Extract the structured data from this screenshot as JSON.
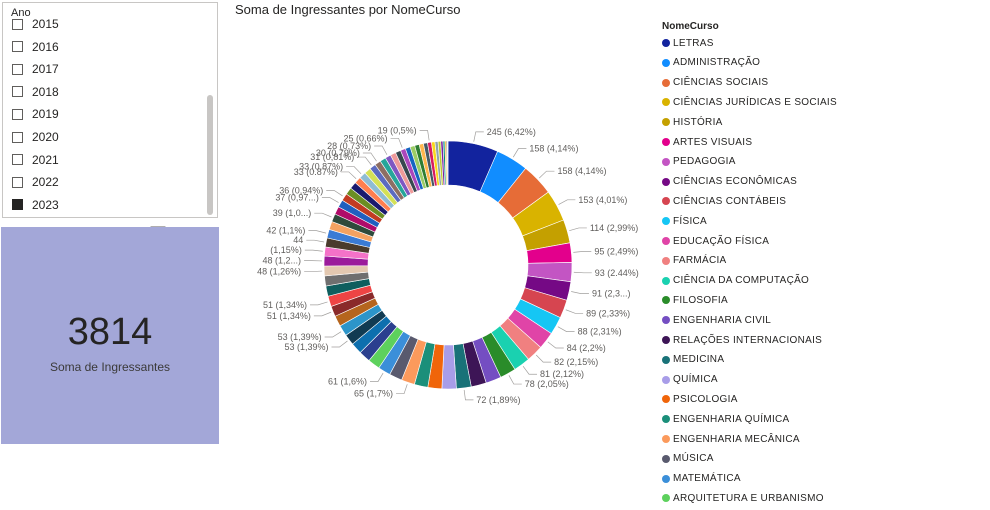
{
  "slicer": {
    "title": "Ano",
    "items": [
      {
        "label": "2015",
        "checked": false
      },
      {
        "label": "2016",
        "checked": false
      },
      {
        "label": "2017",
        "checked": false
      },
      {
        "label": "2018",
        "checked": false
      },
      {
        "label": "2019",
        "checked": false
      },
      {
        "label": "2020",
        "checked": false
      },
      {
        "label": "2021",
        "checked": false
      },
      {
        "label": "2022",
        "checked": false
      },
      {
        "label": "2023",
        "checked": true
      }
    ]
  },
  "card": {
    "value": "3814",
    "label": "Soma de Ingressantes",
    "tools": [
      "filter-icon",
      "focus-mode-icon",
      "more-options-icon"
    ],
    "background": "#a3a7d8"
  },
  "chart_data": {
    "type": "pie",
    "donut": true,
    "title": "Soma de Ingressantes por NomeCurso",
    "legend_title": "NomeCurso",
    "legend_position": "right",
    "total": 3814,
    "slices": [
      {
        "name": "LETRAS",
        "value": 245,
        "label": "245 (6,42%)",
        "color": "#12239e"
      },
      {
        "name": "ADMINISTRAÇÃO",
        "value": 158,
        "label": "158 (4,14%)",
        "color": "#118dff"
      },
      {
        "name": "CIÊNCIAS SOCIAIS",
        "value": 158,
        "label": "158 (4,14%)",
        "color": "#e66c37"
      },
      {
        "name": "CIÊNCIAS JURÍDICAS E SOCIAIS",
        "value": 153,
        "label": "153 (4,01%)",
        "color": "#d9b300"
      },
      {
        "name": "HISTÓRIA",
        "value": 114,
        "label": "114 (2,99%)",
        "color": "#c4a000"
      },
      {
        "name": "ARTES VISUAIS",
        "value": 95,
        "label": "95 (2,49%)",
        "color": "#e3008c"
      },
      {
        "name": "PEDAGOGIA",
        "value": 93,
        "label": "93 (2.44%)",
        "color": "#c355c3"
      },
      {
        "name": "CIÊNCIAS ECONÔMICAS",
        "value": 91,
        "label": "91 (2,3...)",
        "color": "#750985"
      },
      {
        "name": "CIÊNCIAS CONTÁBEIS",
        "value": 89,
        "label": "89 (2,33%)",
        "color": "#d64550"
      },
      {
        "name": "FÍSICA",
        "value": 88,
        "label": "88 (2,31%)",
        "color": "#15c6f4"
      },
      {
        "name": "EDUCAÇÃO FÍSICA",
        "value": 84,
        "label": "84 (2,2%)",
        "color": "#e044a7"
      },
      {
        "name": "FARMÁCIA",
        "value": 82,
        "label": "82 (2,15%)",
        "color": "#f08080"
      },
      {
        "name": "CIÊNCIA DA COMPUTAÇÃO",
        "value": 81,
        "label": "81 (2,12%)",
        "color": "#1ad1b0"
      },
      {
        "name": "FILOSOFIA",
        "value": 78,
        "label": "78 (2,05%)",
        "color": "#2a8c2a"
      },
      {
        "name": "ENGENHARIA CIVIL",
        "value": 75,
        "label": "",
        "color": "#744ec2"
      },
      {
        "name": "RELAÇÕES INTERNACIONAIS",
        "value": 74,
        "label": "",
        "color": "#3d1556"
      },
      {
        "name": "MEDICINA",
        "value": 72,
        "label": "72 (1,89%)",
        "color": "#197278"
      },
      {
        "name": "QUÍMICA",
        "value": 70,
        "label": "",
        "color": "#a89de8"
      },
      {
        "name": "PSICOLOGIA",
        "value": 68,
        "label": "",
        "color": "#f0650a"
      },
      {
        "name": "ENGENHARIA QUÍMICA",
        "value": 66,
        "label": "",
        "color": "#1b8f7a"
      },
      {
        "name": "ENGENHARIA MECÂNICA",
        "value": 65,
        "label": "65 (1,7%)",
        "color": "#fb9a5c"
      },
      {
        "name": "MÚSICA",
        "value": 63,
        "label": "",
        "color": "#595a6e"
      },
      {
        "name": "MATEMÁTICA",
        "value": 61,
        "label": "61 (1,6%)",
        "color": "#3b8fd9"
      },
      {
        "name": "ARQUITETURA E URBANISMO",
        "value": 59,
        "label": "",
        "color": "#5dd15d"
      },
      {
        "name": "",
        "value": 57,
        "label": "",
        "color": "#2b3f8f"
      },
      {
        "name": "",
        "value": 55,
        "label": "",
        "color": "#0d6fae"
      },
      {
        "name": "",
        "value": 53,
        "label": "53 (1,39%)",
        "color": "#113b52"
      },
      {
        "name": "",
        "value": 53,
        "label": "53 (1,39%)",
        "color": "#2c95c9"
      },
      {
        "name": "",
        "value": 52,
        "label": "",
        "color": "#b5651d"
      },
      {
        "name": "",
        "value": 51,
        "label": "51 (1,34%)",
        "color": "#8a2a2a"
      },
      {
        "name": "",
        "value": 51,
        "label": "51 (1,34%)",
        "color": "#ee4444"
      },
      {
        "name": "",
        "value": 50,
        "label": "",
        "color": "#0e5e5e"
      },
      {
        "name": "",
        "value": 49,
        "label": "",
        "color": "#6f6f6f"
      },
      {
        "name": "",
        "value": 48,
        "label": "48 (1,26%)",
        "color": "#e3c8b0"
      },
      {
        "name": "",
        "value": 48,
        "label": "48 (1,2...)",
        "color": "#9b1b9b"
      },
      {
        "name": "",
        "value": 44,
        "label": "(1,15%)",
        "color": "#f472c8"
      },
      {
        "name": "",
        "value": 44,
        "label": "44",
        "color": "#4a3b2c"
      },
      {
        "name": "",
        "value": 42,
        "label": "42 (1,1%)",
        "color": "#3a7bd5"
      },
      {
        "name": "",
        "value": 40,
        "label": "",
        "color": "#f4a261"
      },
      {
        "name": "",
        "value": 39,
        "label": "39 (1,0...)",
        "color": "#2e4a3b"
      },
      {
        "name": "",
        "value": 38,
        "label": "",
        "color": "#b00b69"
      },
      {
        "name": "",
        "value": 37,
        "label": "37 (0,97...)",
        "color": "#1f5fbf"
      },
      {
        "name": "",
        "value": 36,
        "label": "36 (0,94%)",
        "color": "#c23b22"
      },
      {
        "name": "",
        "value": 35,
        "label": "",
        "color": "#6b8e23"
      },
      {
        "name": "",
        "value": 34,
        "label": "",
        "color": "#1a1a6e"
      },
      {
        "name": "",
        "value": 33,
        "label": "33 (0.87%)",
        "color": "#ff7f50"
      },
      {
        "name": "",
        "value": 33,
        "label": "33 (0,87%)",
        "color": "#8fbcd4"
      },
      {
        "name": "",
        "value": 32,
        "label": "",
        "color": "#d4e157"
      },
      {
        "name": "",
        "value": 31,
        "label": "31 (0,81%)",
        "color": "#5c6bc0"
      },
      {
        "name": "",
        "value": 30,
        "label": "30 (0,79%)",
        "color": "#8d6e63"
      },
      {
        "name": "",
        "value": 29,
        "label": "",
        "color": "#26a69a"
      },
      {
        "name": "",
        "value": 28,
        "label": "28 (0,73%)",
        "color": "#7e57c2"
      },
      {
        "name": "",
        "value": 27,
        "label": "",
        "color": "#ef9a9a"
      },
      {
        "name": "",
        "value": 26,
        "label": "",
        "color": "#37474f"
      },
      {
        "name": "",
        "value": 25,
        "label": "25 (0,66%)",
        "color": "#ab47bc"
      },
      {
        "name": "",
        "value": 24,
        "label": "",
        "color": "#1565c0"
      },
      {
        "name": "",
        "value": 23,
        "label": "",
        "color": "#9ccc65"
      },
      {
        "name": "",
        "value": 22,
        "label": "",
        "color": "#2e7d32"
      },
      {
        "name": "",
        "value": 21,
        "label": "",
        "color": "#ffb74d"
      },
      {
        "name": "",
        "value": 20,
        "label": "",
        "color": "#455a64"
      },
      {
        "name": "",
        "value": 19,
        "label": "19 (0,5%)",
        "color": "#d81b60"
      },
      {
        "name": "",
        "value": 17,
        "label": "",
        "color": "#f9d71c"
      },
      {
        "name": "",
        "value": 15,
        "label": "",
        "color": "#90a4ae"
      },
      {
        "name": "",
        "value": 13,
        "label": "",
        "color": "#c0ca33"
      },
      {
        "name": "",
        "value": 11,
        "label": "",
        "color": "#7b1fa2"
      },
      {
        "name": "",
        "value": 9,
        "label": "",
        "color": "#00897b"
      },
      {
        "name": "",
        "value": 7,
        "label": "",
        "color": "#fbc02d"
      },
      {
        "name": "",
        "value": 5,
        "label": "",
        "color": "#5d4037"
      },
      {
        "name": "",
        "value": 3,
        "label": "",
        "color": "#3949ab"
      }
    ]
  }
}
